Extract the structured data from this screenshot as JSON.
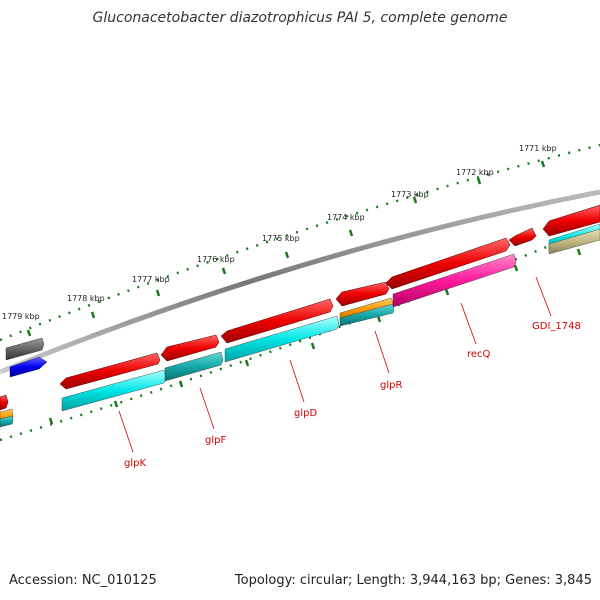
{
  "title": "Gluconacetobacter diazotrophicus PAI 5, complete genome",
  "accession": "Accession: NC_010125",
  "topology": "Topology: circular; Length: 3,944,163 bp; Genes: 3,845",
  "scale_labels": [
    "1771 kbp",
    "1772 kbp",
    "1773 kbp",
    "1774 kbp",
    "1775 kbp",
    "1776 kbp",
    "1777 kbp",
    "1778 kbp",
    "1779 kbp"
  ],
  "gene_labels": [
    "GDI_1748",
    "recQ",
    "glpR",
    "glpD",
    "glpF",
    "glpK"
  ],
  "colors": {
    "cds": "#ff0000",
    "gene_cyan": "#00e6e6",
    "gene_teal": "#16b0b0",
    "gene_orange": "#ff9900",
    "gene_magenta": "#ff1a9c",
    "gene_khaki": "#c2b884",
    "gene_grey": "#666666",
    "gene_blue": "#0000ee",
    "backbone": "#888888",
    "scale": "#1a7a1a",
    "label": "#d40000"
  }
}
